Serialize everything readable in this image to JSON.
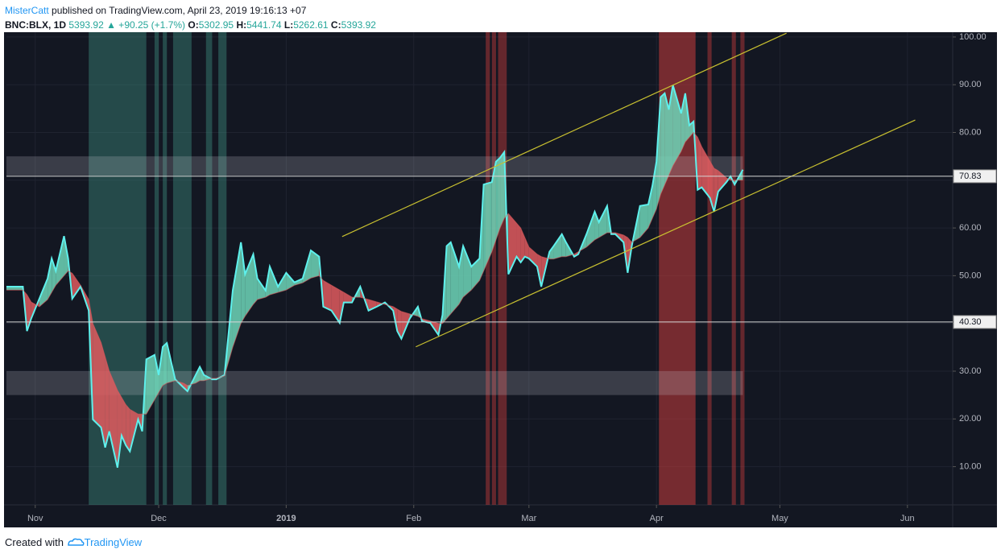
{
  "header": {
    "author": "MisterCatt",
    "published": "published on TradingView.com, April 23, 2019 19:16:13 +07",
    "symbol": "BNC:BLX, 1D",
    "last": "5393.92",
    "change": "▲ +90.25 (+1.7%)",
    "ohlc": [
      {
        "label": "O:",
        "value": "5302.95"
      },
      {
        "label": "H:",
        "value": "5441.74"
      },
      {
        "label": "L:",
        "value": "5262.61"
      },
      {
        "label": "C:",
        "value": "5393.92"
      }
    ]
  },
  "footer": {
    "text": "Created with",
    "brand": "TradingView"
  },
  "chart_data": {
    "type": "line",
    "x": [
      -7,
      -3,
      -2,
      -1,
      1,
      3,
      4,
      5,
      7,
      8,
      9,
      11,
      13,
      14,
      16,
      17,
      18,
      20,
      21,
      22,
      23,
      25,
      26,
      27,
      29,
      30,
      31,
      32,
      34,
      36,
      37,
      39,
      40,
      41,
      43,
      44,
      46,
      48,
      50,
      51,
      53,
      54,
      56,
      57,
      59,
      61,
      63,
      65,
      67,
      69,
      70,
      72,
      74,
      75,
      77,
      79,
      81,
      83,
      85,
      87,
      88,
      89,
      91,
      93,
      94,
      96,
      98,
      99,
      100,
      101,
      103,
      104,
      106,
      108,
      109,
      111,
      112,
      113,
      114,
      115,
      117,
      118,
      119,
      120,
      122,
      123,
      125,
      126,
      128,
      129,
      131,
      132,
      134,
      136,
      137,
      139,
      140,
      141,
      143,
      144,
      145,
      147,
      149,
      150,
      151,
      152,
      153,
      154,
      155,
      157,
      158,
      159,
      160,
      161,
      162,
      164,
      165,
      166,
      168,
      169,
      170,
      172
    ],
    "series": [
      {
        "color": "#5ef0ec",
        "values": [
          47.7,
          47.7,
          38.4,
          41,
          45.2,
          49.4,
          53.6,
          51,
          58.3,
          53.6,
          45.2,
          47.7,
          42.7,
          19.9,
          18.2,
          14,
          17.4,
          9.8,
          16.5,
          14.5,
          13.2,
          19.9,
          17.4,
          32.5,
          33.4,
          29.2,
          35.1,
          35.9,
          28.3,
          26.6,
          25.8,
          29.2,
          30.9,
          29.2,
          28.3,
          28.3,
          29.2,
          46.9,
          57,
          50.3,
          54.5,
          49.4,
          46.9,
          51.9,
          47.7,
          50.6,
          48.6,
          49.4,
          55.3,
          54,
          43.5,
          42.7,
          40.1,
          44.4,
          44.4,
          47.7,
          42.7,
          43.5,
          44.4,
          42.7,
          38.4,
          36.8,
          41,
          43.5,
          40.5,
          40.1,
          37.6,
          41.8,
          56.2,
          57,
          51.9,
          56.2,
          51.9,
          53.6,
          69.1,
          69.6,
          73.9,
          74.7,
          75.9,
          50.3,
          54,
          52.8,
          54,
          53.6,
          51.9,
          47.7,
          55,
          56.2,
          58.7,
          57,
          54,
          54.5,
          58.7,
          63.4,
          61.2,
          64.6,
          58.7,
          58.7,
          57,
          50.6,
          56.2,
          64.6,
          64.9,
          68.8,
          73.9,
          87.4,
          88.2,
          84.8,
          89.9,
          84,
          88.2,
          81.5,
          82.3,
          68,
          68.5,
          66.3,
          63.4,
          67.6,
          69.6,
          70.8,
          69.1,
          72.2
        ]
      },
      {
        "color": "#e05a5e",
        "values": [
          47,
          47,
          46,
          44.5,
          43.5,
          45,
          46.5,
          48,
          50,
          51,
          50.5,
          48,
          45,
          40,
          36,
          33,
          30,
          26,
          24.5,
          23,
          22,
          21,
          21,
          21,
          24,
          25.5,
          27,
          27.5,
          28,
          27.5,
          27,
          27.5,
          28,
          28,
          28.5,
          28.5,
          29,
          35,
          40,
          41.5,
          44,
          45,
          45.5,
          46,
          46.5,
          47,
          48,
          48.5,
          49.5,
          50,
          49,
          48,
          47,
          46.5,
          45.5,
          45.5,
          45,
          44.5,
          44,
          43.5,
          43,
          42.5,
          42,
          41.5,
          41,
          40.5,
          40,
          40,
          41,
          42,
          44,
          45.5,
          47,
          49,
          51,
          55,
          57.5,
          60,
          62,
          63,
          61,
          60,
          58,
          56,
          54.5,
          54,
          53.5,
          53.5,
          54,
          54,
          54.5,
          55,
          56,
          57.5,
          58,
          59,
          59,
          59,
          58.5,
          58,
          57,
          58,
          60,
          62,
          64,
          67,
          69,
          71,
          73,
          76,
          78,
          79,
          80,
          79,
          77,
          74,
          72.5,
          72,
          70.5,
          70,
          70,
          70
        ]
      }
    ],
    "fill_up_color": "#6fd6b8",
    "fill_down_color": "#e05a5e",
    "xlim": [
      -7,
      223
    ],
    "xticks": [
      {
        "value": 0,
        "label": "Nov"
      },
      {
        "value": 30,
        "label": "Dec"
      },
      {
        "value": 61,
        "label": "2019"
      },
      {
        "value": 92,
        "label": "Feb"
      },
      {
        "value": 120,
        "label": "Mar"
      },
      {
        "value": 151,
        "label": "Apr"
      },
      {
        "value": 181,
        "label": "May"
      },
      {
        "value": 212,
        "label": "Jun"
      }
    ],
    "ylim": [
      2,
      101
    ],
    "yticks": [
      {
        "value": 10,
        "label": "10.00"
      },
      {
        "value": 20,
        "label": "20.00"
      },
      {
        "value": 30,
        "label": "30.00"
      },
      {
        "value": 40,
        "label": "40.00"
      },
      {
        "value": 50,
        "label": "50.00"
      },
      {
        "value": 60,
        "label": "60.00"
      },
      {
        "value": 70,
        "label": "70.00"
      },
      {
        "value": 80,
        "label": "80.00"
      },
      {
        "value": 90,
        "label": "90.00"
      },
      {
        "value": 100,
        "label": "100.00"
      }
    ],
    "grid": true,
    "price_lines": [
      {
        "value": 70.83,
        "label": "70.83"
      },
      {
        "value": 40.3,
        "label": "40.30"
      }
    ],
    "zones": [
      {
        "y": [
          25,
          30
        ],
        "x": [
          -7,
          172
        ]
      },
      {
        "y": [
          71,
          75
        ],
        "x": [
          -7,
          172
        ]
      }
    ],
    "bands": [
      {
        "x": [
          13,
          27
        ],
        "color": "rgba(72,170,150,0.35)"
      },
      {
        "x": [
          29,
          30
        ],
        "color": "rgba(72,170,150,0.35)"
      },
      {
        "x": [
          31,
          32
        ],
        "color": "rgba(72,170,150,0.35)"
      },
      {
        "x": [
          33.5,
          38
        ],
        "color": "rgba(72,170,150,0.35)"
      },
      {
        "x": [
          41.5,
          43
        ],
        "color": "rgba(72,170,150,0.35)"
      },
      {
        "x": [
          44.5,
          46.5
        ],
        "color": "rgba(72,170,150,0.35)"
      },
      {
        "x": [
          109.5,
          110.5
        ],
        "color": "rgba(200,60,60,0.45)"
      },
      {
        "x": [
          111,
          112
        ],
        "color": "rgba(200,60,60,0.45)"
      },
      {
        "x": [
          112.5,
          114.6
        ],
        "color": "rgba(200,60,60,0.45)"
      },
      {
        "x": [
          151.6,
          160.5
        ],
        "color": "rgba(200,60,60,0.55)"
      },
      {
        "x": [
          163.4,
          164.4
        ],
        "color": "rgba(200,60,60,0.45)"
      },
      {
        "x": [
          169.3,
          170.3
        ],
        "color": "rgba(200,60,60,0.45)"
      },
      {
        "x": [
          171.4,
          172.4
        ],
        "color": "rgba(200,60,60,0.45)"
      }
    ],
    "trendlines": [
      {
        "x": [
          74.6,
          182.6
        ],
        "y": [
          58.2,
          100.8
        ],
        "color": "#c8c030"
      },
      {
        "x": [
          92.5,
          213.9
        ],
        "y": [
          35.1,
          82.6
        ],
        "color": "#c8c030"
      }
    ]
  }
}
